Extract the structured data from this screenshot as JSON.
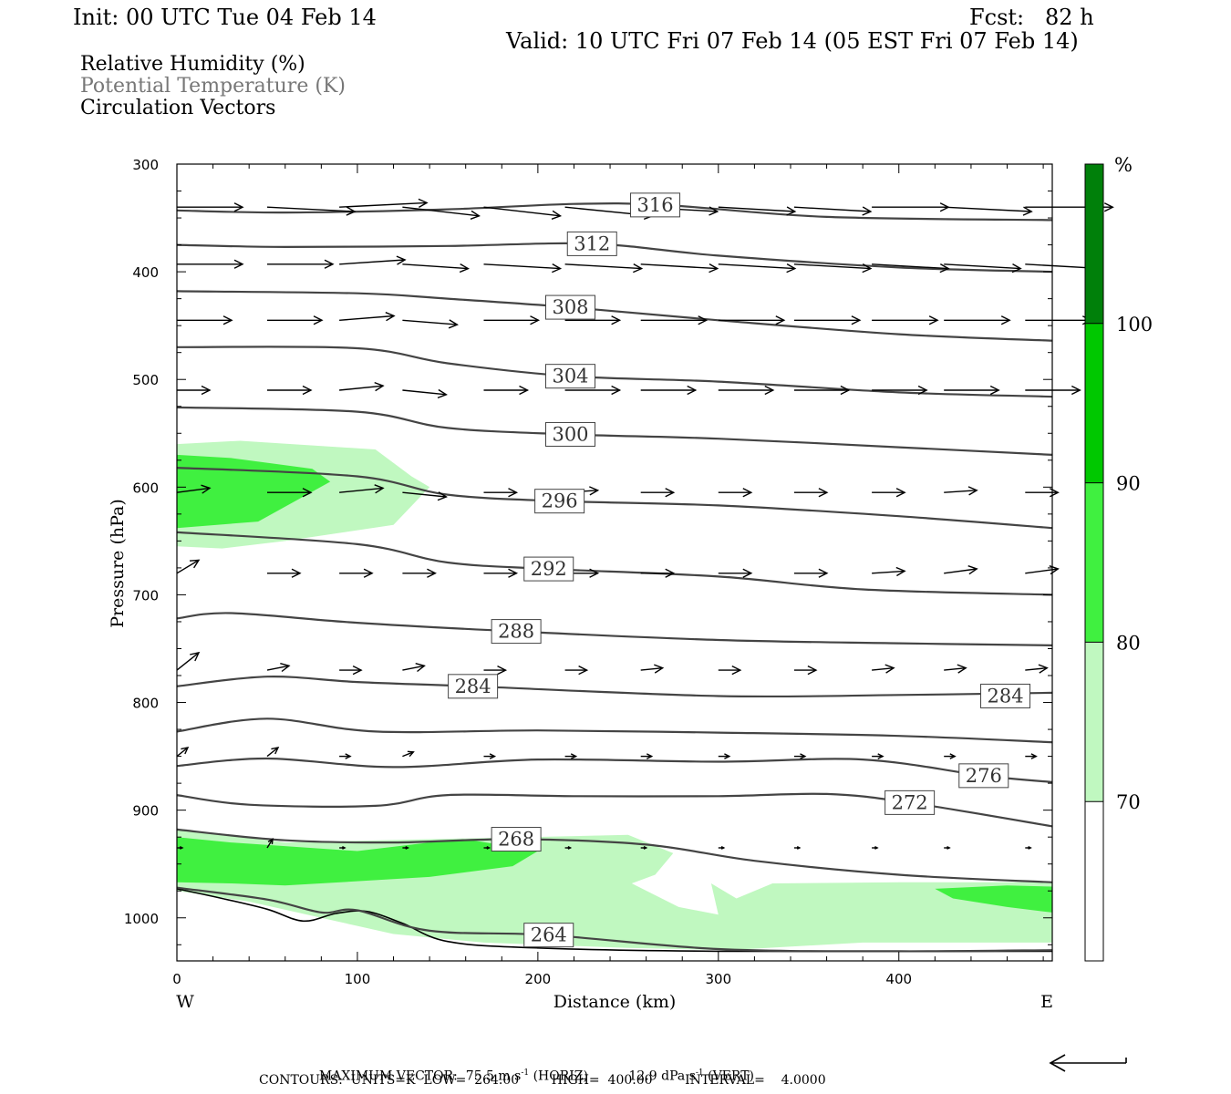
{
  "header": {
    "init": "Init: 00 UTC Tue 04 Feb 14",
    "fcst": "Fcst:   82 h",
    "valid": "Valid: 10 UTC Fri 07 Feb 14 (05 EST Fri 07 Feb 14)"
  },
  "legend": {
    "line1": "Relative Humidity (%)",
    "line2": "Potential Temperature (K)",
    "line3": "Circulation Vectors"
  },
  "footer": {
    "max_vector_label": "MAXIMUM VECTOR:",
    "horiz_value": "75.5 m s",
    "horiz_unit": "(HORIZ)",
    "vert_value": "12.9 dPa s",
    "vert_unit": "(VERT)",
    "exp": "-1",
    "contours": "CONTOURS:  UNITS=K  LOW=  264.00        HIGH=  400.00        INTERVAL=    4.0000"
  },
  "colors": {
    "rh_70": "#c0f8c0",
    "rh_80": "#40f040",
    "rh_90": "#00c800",
    "rh_100": "#00800a",
    "contour": "#444444",
    "vector": "#000000"
  },
  "chart_data": {
    "type": "cross-section",
    "xlabel": "Distance (km)",
    "ylabel": "Pressure (hPa)",
    "xlim": [
      0,
      485
    ],
    "ylim": [
      1040,
      300
    ],
    "x_ticks": [
      0,
      100,
      200,
      300,
      400
    ],
    "y_ticks": [
      300,
      400,
      500,
      600,
      700,
      800,
      900,
      1000
    ],
    "x_end_labels": {
      "left": "W",
      "right": "E"
    },
    "colorbar": {
      "unit": "%",
      "levels": [
        70,
        80,
        90,
        100
      ],
      "colors": [
        "#ffffff",
        "#c0f8c0",
        "#40f040",
        "#00c800",
        "#00800a"
      ]
    },
    "contours": [
      {
        "level": 316,
        "label": "316",
        "label_at": [
          265,
          338
        ],
        "points": [
          [
            0,
            343
          ],
          [
            60,
            345
          ],
          [
            150,
            342
          ],
          [
            220,
            337
          ],
          [
            270,
            338
          ],
          [
            360,
            349
          ],
          [
            485,
            352
          ]
        ]
      },
      {
        "level": 312,
        "label": "312",
        "label_at": [
          230,
          374
        ],
        "points": [
          [
            0,
            375
          ],
          [
            60,
            377
          ],
          [
            150,
            376
          ],
          [
            230,
            374
          ],
          [
            300,
            385
          ],
          [
            400,
            396
          ],
          [
            485,
            400
          ]
        ]
      },
      {
        "level": 308,
        "label": "308",
        "label_at": [
          218,
          433
        ],
        "points": [
          [
            0,
            418
          ],
          [
            100,
            420
          ],
          [
            150,
            425
          ],
          [
            218,
            433
          ],
          [
            300,
            445
          ],
          [
            400,
            458
          ],
          [
            485,
            464
          ]
        ]
      },
      {
        "level": 304,
        "label": "304",
        "label_at": [
          218,
          497
        ],
        "points": [
          [
            0,
            470
          ],
          [
            100,
            471
          ],
          [
            150,
            485
          ],
          [
            218,
            497
          ],
          [
            300,
            502
          ],
          [
            400,
            512
          ],
          [
            485,
            516
          ]
        ]
      },
      {
        "level": 300,
        "label": "300",
        "label_at": [
          218,
          551
        ],
        "points": [
          [
            0,
            526
          ],
          [
            100,
            530
          ],
          [
            150,
            545
          ],
          [
            218,
            551
          ],
          [
            300,
            555
          ],
          [
            400,
            563
          ],
          [
            485,
            570
          ]
        ]
      },
      {
        "level": 296,
        "label": "296",
        "label_at": [
          212,
          613
        ],
        "points": [
          [
            0,
            582
          ],
          [
            100,
            590
          ],
          [
            150,
            607
          ],
          [
            212,
            613
          ],
          [
            300,
            617
          ],
          [
            400,
            627
          ],
          [
            485,
            638
          ]
        ]
      },
      {
        "level": 292,
        "label": "292",
        "label_at": [
          206,
          676
        ],
        "points": [
          [
            0,
            642
          ],
          [
            100,
            653
          ],
          [
            150,
            670
          ],
          [
            206,
            676
          ],
          [
            300,
            683
          ],
          [
            380,
            695
          ],
          [
            485,
            700
          ]
        ]
      },
      {
        "level": 288,
        "label": "288",
        "label_at": [
          188,
          734
        ],
        "points": [
          [
            0,
            722
          ],
          [
            30,
            717
          ],
          [
            100,
            726
          ],
          [
            188,
            734
          ],
          [
            300,
            742
          ],
          [
            400,
            745
          ],
          [
            485,
            747
          ]
        ]
      },
      {
        "level": 284,
        "label": "284",
        "label_at": [
          164,
          785
        ],
        "points": [
          [
            0,
            785
          ],
          [
            50,
            776
          ],
          [
            100,
            781
          ],
          [
            164,
            785
          ],
          [
            300,
            794
          ],
          [
            400,
            793
          ],
          [
            485,
            791
          ]
        ]
      },
      {
        "level": 284,
        "label": "284",
        "label_at": [
          459,
          794
        ],
        "points": []
      },
      {
        "level": 280,
        "label": "",
        "label_at": null,
        "points": [
          [
            0,
            827
          ],
          [
            50,
            815
          ],
          [
            110,
            827
          ],
          [
            200,
            826
          ],
          [
            300,
            828
          ],
          [
            400,
            831
          ],
          [
            485,
            837
          ]
        ]
      },
      {
        "level": 276,
        "label": "276",
        "label_at": [
          447,
          868
        ],
        "points": [
          [
            0,
            859
          ],
          [
            50,
            852
          ],
          [
            120,
            860
          ],
          [
            200,
            853
          ],
          [
            300,
            855
          ],
          [
            380,
            853
          ],
          [
            447,
            868
          ],
          [
            485,
            874
          ]
        ]
      },
      {
        "level": 272,
        "label": "272",
        "label_at": [
          406,
          893
        ],
        "points": [
          [
            0,
            886
          ],
          [
            40,
            895
          ],
          [
            110,
            896
          ],
          [
            150,
            886
          ],
          [
            220,
            887
          ],
          [
            300,
            887
          ],
          [
            360,
            885
          ],
          [
            406,
            893
          ],
          [
            485,
            915
          ]
        ]
      },
      {
        "level": 268,
        "label": "268",
        "label_at": [
          188,
          927
        ],
        "points": [
          [
            0,
            918
          ],
          [
            60,
            928
          ],
          [
            120,
            930
          ],
          [
            188,
            927
          ],
          [
            260,
            932
          ],
          [
            320,
            947
          ],
          [
            400,
            960
          ],
          [
            485,
            967
          ]
        ]
      },
      {
        "level": 264,
        "label": "264",
        "label_at": [
          206,
          1016
        ],
        "points": [
          [
            0,
            972
          ],
          [
            50,
            983
          ],
          [
            80,
            995
          ],
          [
            100,
            993
          ],
          [
            140,
            1012
          ],
          [
            206,
            1016
          ],
          [
            300,
            1029
          ],
          [
            400,
            1031
          ],
          [
            485,
            1030
          ]
        ]
      }
    ],
    "terrain": [
      [
        0,
        973
      ],
      [
        25,
        982
      ],
      [
        50,
        992
      ],
      [
        70,
        1003
      ],
      [
        88,
        996
      ],
      [
        105,
        994
      ],
      [
        125,
        1005
      ],
      [
        150,
        1022
      ],
      [
        200,
        1028
      ],
      [
        300,
        1031
      ],
      [
        485,
        1031
      ]
    ],
    "rh_regions": [
      {
        "level": 70,
        "points": [
          [
            0,
            560
          ],
          [
            35,
            557
          ],
          [
            110,
            565
          ],
          [
            130,
            590
          ],
          [
            140,
            600
          ],
          [
            120,
            635
          ],
          [
            60,
            650
          ],
          [
            25,
            657
          ],
          [
            0,
            655
          ]
        ]
      },
      {
        "level": 80,
        "points": [
          [
            0,
            570
          ],
          [
            30,
            573
          ],
          [
            75,
            583
          ],
          [
            85,
            595
          ],
          [
            45,
            632
          ],
          [
            0,
            638
          ]
        ]
      },
      {
        "level": 70,
        "points": [
          [
            0,
            917
          ],
          [
            60,
            930
          ],
          [
            140,
            927
          ],
          [
            250,
            923
          ],
          [
            275,
            940
          ],
          [
            265,
            960
          ],
          [
            252,
            968
          ],
          [
            278,
            990
          ],
          [
            300,
            997
          ],
          [
            296,
            968
          ],
          [
            310,
            982
          ],
          [
            330,
            968
          ],
          [
            400,
            967
          ],
          [
            485,
            967
          ],
          [
            485,
            1023
          ],
          [
            380,
            1023
          ],
          [
            305,
            1030
          ],
          [
            250,
            1028
          ],
          [
            170,
            1023
          ],
          [
            120,
            1015
          ],
          [
            80,
            1000
          ],
          [
            40,
            985
          ],
          [
            0,
            975
          ]
        ]
      },
      {
        "level": 80,
        "points": [
          [
            0,
            925
          ],
          [
            30,
            930
          ],
          [
            100,
            938
          ],
          [
            140,
            930
          ],
          [
            160,
            927
          ],
          [
            200,
            938
          ],
          [
            186,
            952
          ],
          [
            140,
            962
          ],
          [
            60,
            970
          ],
          [
            30,
            968
          ],
          [
            0,
            967
          ]
        ]
      },
      {
        "level": 80,
        "points": [
          [
            420,
            973
          ],
          [
            460,
            970
          ],
          [
            485,
            971
          ],
          [
            485,
            995
          ],
          [
            460,
            990
          ],
          [
            430,
            982
          ]
        ]
      }
    ],
    "vectors": [
      {
        "p": 340,
        "x": [
          0,
          50,
          90,
          125,
          170,
          215,
          257,
          300,
          342,
          385,
          425,
          470
        ],
        "u": [
          6,
          8,
          8,
          7,
          7,
          8,
          7,
          7,
          7,
          7,
          8,
          8
        ],
        "w": [
          0,
          -0.1,
          0.1,
          -0.2,
          -0.2,
          -0.2,
          -0.1,
          -0.1,
          -0.1,
          0,
          -0.1,
          0
        ]
      },
      {
        "p": 393,
        "x": [
          0,
          50,
          90,
          125,
          170,
          215,
          257,
          300,
          342,
          385,
          425,
          470
        ],
        "u": [
          6,
          6,
          6,
          6,
          7,
          7,
          7,
          7,
          7,
          7,
          7,
          7
        ],
        "w": [
          0,
          0,
          0.1,
          -0.1,
          -0.1,
          -0.1,
          -0.1,
          -0.1,
          -0.1,
          -0.1,
          -0.1,
          -0.1
        ]
      },
      {
        "p": 445,
        "x": [
          0,
          50,
          90,
          125,
          170,
          215,
          257,
          300,
          342,
          385,
          425,
          470
        ],
        "u": [
          5,
          5,
          5,
          5,
          5,
          5,
          6,
          6,
          6,
          6,
          6,
          6
        ],
        "w": [
          0,
          0,
          0.1,
          -0.1,
          0,
          0,
          0,
          0,
          0,
          0,
          0,
          0
        ]
      },
      {
        "p": 510,
        "x": [
          0,
          50,
          90,
          125,
          170,
          215,
          257,
          300,
          342,
          385,
          425,
          470
        ],
        "u": [
          3,
          4,
          4,
          4,
          4,
          5,
          5,
          5,
          5,
          5,
          5,
          5
        ],
        "w": [
          0,
          0,
          0.1,
          -0.1,
          0,
          0,
          0,
          0,
          0,
          0,
          0,
          0
        ]
      },
      {
        "p": 605,
        "x": [
          0,
          50,
          90,
          125,
          170,
          215,
          257,
          300,
          342,
          385,
          425,
          470
        ],
        "u": [
          3,
          4,
          4,
          4,
          3,
          3,
          3,
          3,
          3,
          3,
          3,
          3
        ],
        "w": [
          0.1,
          0,
          0.1,
          -0.1,
          0,
          0.05,
          0,
          0,
          0,
          0,
          0.05,
          0
        ]
      },
      {
        "p": 680,
        "x": [
          0,
          50,
          90,
          125,
          170,
          215,
          257,
          300,
          342,
          385,
          425,
          470
        ],
        "u": [
          2,
          3,
          3,
          3,
          3,
          3,
          3,
          3,
          3,
          3,
          3,
          3
        ],
        "w": [
          0.3,
          0,
          0,
          0,
          0,
          0,
          0,
          0,
          0,
          0.05,
          0.1,
          0.1
        ]
      },
      {
        "p": 770,
        "x": [
          0,
          50,
          90,
          125,
          170,
          215,
          257,
          300,
          342,
          385,
          425,
          470
        ],
        "u": [
          2,
          2,
          2,
          2,
          2,
          2,
          2,
          2,
          2,
          2,
          2,
          2
        ],
        "w": [
          0.4,
          0.1,
          0,
          0.1,
          0,
          0,
          0.05,
          0,
          0,
          0.05,
          0.05,
          0.05
        ]
      },
      {
        "p": 850,
        "x": [
          0,
          50,
          90,
          125,
          170,
          215,
          257,
          300,
          342,
          385,
          425,
          470
        ],
        "u": [
          1,
          1,
          1,
          1,
          1,
          1,
          1,
          1,
          1,
          1,
          1,
          1
        ],
        "w": [
          0.2,
          0.2,
          0,
          0.1,
          0,
          0,
          0,
          0,
          0,
          0,
          0,
          0
        ]
      },
      {
        "p": 935,
        "x": [
          0,
          50,
          90,
          125,
          170,
          215,
          257,
          300,
          342,
          385,
          425,
          470
        ],
        "u": [
          0.5,
          0.5,
          0.5,
          0.5,
          0.5,
          0.5,
          0.5,
          0.5,
          0.5,
          0.5,
          0.5,
          0.5
        ],
        "w": [
          0,
          0.2,
          0,
          0,
          0,
          0,
          0,
          0,
          0,
          0,
          0,
          0
        ]
      }
    ]
  }
}
